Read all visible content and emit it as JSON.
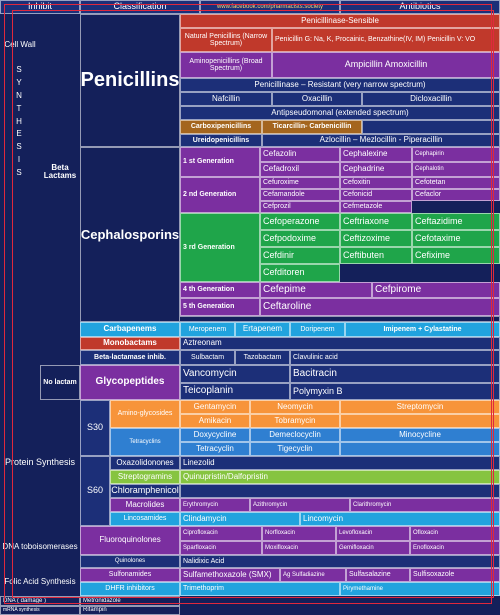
{
  "cells": [
    "Inhibit",
    "Classification",
    "www.facebook.com/pharmacists.society",
    "Antibiotics",
    "Cell Wall",
    "SYNTHESIS",
    "Beta Lactams",
    "Penicillins",
    "Penicillinase-Sensible",
    "Natural Penicillins (Narrow Spectrum)",
    "Penicillin G: Na, K, Procainic, Benzathine(IV, IM) Penicillin V: VO",
    "Aminopenicillins (Broad Spectrum)",
    "Ampicillin Amoxicillin",
    "Penicillinase – Resistant (very narrow spectrum)",
    "Nafcillin",
    "Oxacillin",
    "Dicloxacillin",
    "Antipseudomonal (extended spectrum)",
    "Carboxipenicillins",
    "Ticarcillin- Carbenicillin",
    "Ureidopenicillins",
    "Azlocillin – Mezlocillin - Piperacillin",
    "Cephalosporins",
    "1 st Generation",
    "Cefazolin",
    "Cephalexine",
    "Cephapirin",
    "Cefadroxil",
    "Cephadrine",
    "Cephalotin",
    "2 nd Generation",
    "Cefuroxime",
    "Cefoxitin",
    "Cefotetan",
    "Cefamandole",
    "Cefonicid",
    "Cefaclor",
    "Cefprozil",
    "Cefmetazole",
    "3 rd Generation",
    "Cefoperazone",
    "Ceftriaxone",
    "Ceftazidime",
    "Cefpodoxime",
    "Ceftizoxime",
    "Cefotaxime",
    "Cefdinir",
    "Ceftibuten",
    "Cefixime",
    "Cefditoren",
    "4 th Generation",
    "Cefepime",
    "Cefpirome",
    "5 th Generation",
    "Ceftaroline",
    "Carbapenems",
    "Meropenem",
    "Ertapenem",
    "Doripenem",
    "Imipenem + Cylastatine",
    "Monobactams",
    "Aztreonam",
    "Beta-lactamase inhib.",
    "Sulbactam",
    "Tazobactam",
    "Clavulinic acid",
    "No lactam",
    "Glycopeptides",
    "Vancomycin",
    "Bacitracin",
    "Teicoplanin",
    "Polymyxin B",
    "S30",
    "Amino-glycosides",
    "Gentamycin",
    "Neomycin",
    "Streptomycin",
    "Amikacin",
    "Tobramycin",
    "Tetracyclins",
    "Doxycycline",
    "Demeclocyclin",
    "Minocycline",
    "Tetracyclin",
    "Tigecyclin",
    "Protein Synthesis",
    "S60",
    "Oxazolidonones",
    "Linezolid",
    "Streptogramins",
    "Quinupristin/Dalfopristin",
    "Chloramphenicol",
    "Macrolides",
    "Erythromycin",
    "Azithromycin",
    "Clarithromycin",
    "Lincosamides",
    "Clindamycin",
    "Lincomycin",
    "DNA toboisomerases",
    "Fluoroquinolones",
    "Ciprofloxacin",
    "Norfloxacin",
    "Levofloxacin",
    "Ofloxacin",
    "Sparfloxacin",
    "Moxifloxacin",
    "Gemifloxacin",
    "Enofloxacin",
    "Quinolones",
    "Nalidixic Acid",
    "Folic Acid Synthesis",
    "Sulfonamides",
    "Sulfamethoxazole (SMX)",
    "Ag Sulfadiazine",
    "Sulfasalazine",
    "Sulfisoxazole",
    "DHFR inhibitors",
    "Trimethoprim",
    "Pirymethamine",
    "DNA ( damage )",
    "Metronidazole",
    "mRNA synthesis",
    "Rifampin"
  ]
}
